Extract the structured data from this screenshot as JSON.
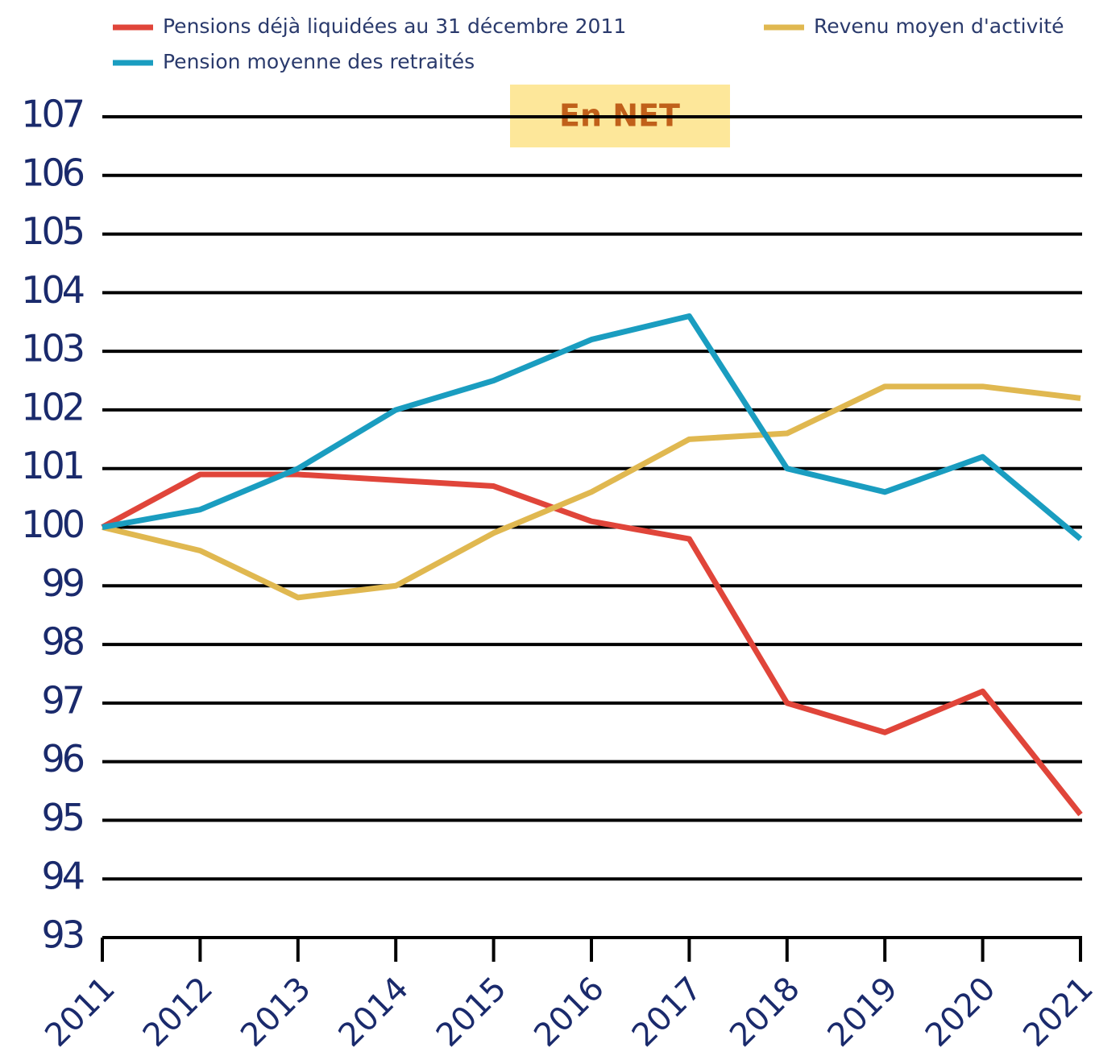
{
  "chart_data": {
    "type": "line",
    "annotation": "En NET",
    "categories": [
      "2011",
      "2012",
      "2013",
      "2014",
      "2015",
      "2016",
      "2017",
      "2018",
      "2019",
      "2020",
      "2021"
    ],
    "series": [
      {
        "name": "Pensions déjà liquidées au 31 décembre 2011",
        "color": "#e0453a",
        "values": [
          100,
          100.9,
          100.9,
          100.8,
          100.7,
          100.1,
          99.8,
          97.0,
          96.5,
          97.2,
          95.1
        ]
      },
      {
        "name": "Revenu moyen d'activité",
        "color": "#e0b850",
        "values": [
          100,
          99.6,
          98.8,
          99.0,
          99.9,
          100.6,
          101.5,
          101.6,
          102.4,
          102.4,
          102.2
        ]
      },
      {
        "name": "Pension moyenne des retraités",
        "color": "#1a9dc0",
        "values": [
          100,
          100.3,
          101.0,
          102.0,
          102.5,
          103.2,
          103.6,
          101.0,
          100.6,
          101.2,
          99.8
        ]
      }
    ],
    "ylim": [
      93,
      107
    ],
    "yticks": [
      93,
      94,
      95,
      96,
      97,
      98,
      99,
      100,
      101,
      102,
      103,
      104,
      105,
      106,
      107
    ],
    "grid": true
  }
}
